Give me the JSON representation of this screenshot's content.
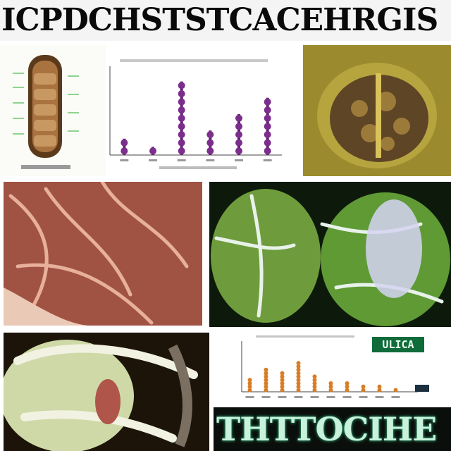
{
  "top_banner": {
    "text": "ICPDCHSTSTCACEHRGIS"
  },
  "bottom_strip": {
    "text": "THTTOCIHE"
  },
  "badge": {
    "text": "ULICA"
  },
  "colors": {
    "purple_marker": "#7b2e8c",
    "orange_marker": "#d97d25",
    "green_glow": "#2fd08a"
  },
  "panels": [
    {
      "name": "segmented-specimen-diagram",
      "kind": "illustration"
    },
    {
      "name": "dot-chart-purple",
      "kind": "chart"
    },
    {
      "name": "yellow-organism-photo",
      "kind": "photo"
    },
    {
      "name": "red-tissue-photo",
      "kind": "photo"
    },
    {
      "name": "green-leaf-photo",
      "kind": "photo"
    },
    {
      "name": "pale-vine-photo",
      "kind": "photo"
    },
    {
      "name": "dot-chart-orange",
      "kind": "chart"
    }
  ],
  "chart_data": [
    {
      "type": "scatter",
      "categories": [
        "",
        "",
        "",
        "",
        "",
        ""
      ],
      "values": [
        2,
        1,
        9,
        3,
        5,
        7
      ],
      "title": "",
      "xlabel": "",
      "ylabel": "",
      "ylim": [
        0,
        10
      ]
    },
    {
      "type": "scatter",
      "categories": [
        "",
        "",
        "",
        "",
        "",
        "",
        "",
        "",
        "",
        ""
      ],
      "values": [
        4,
        7,
        6,
        9,
        5,
        3,
        3,
        2,
        2,
        1
      ],
      "title": "",
      "xlabel": "",
      "ylabel": "",
      "ylim": [
        0,
        10
      ]
    }
  ]
}
